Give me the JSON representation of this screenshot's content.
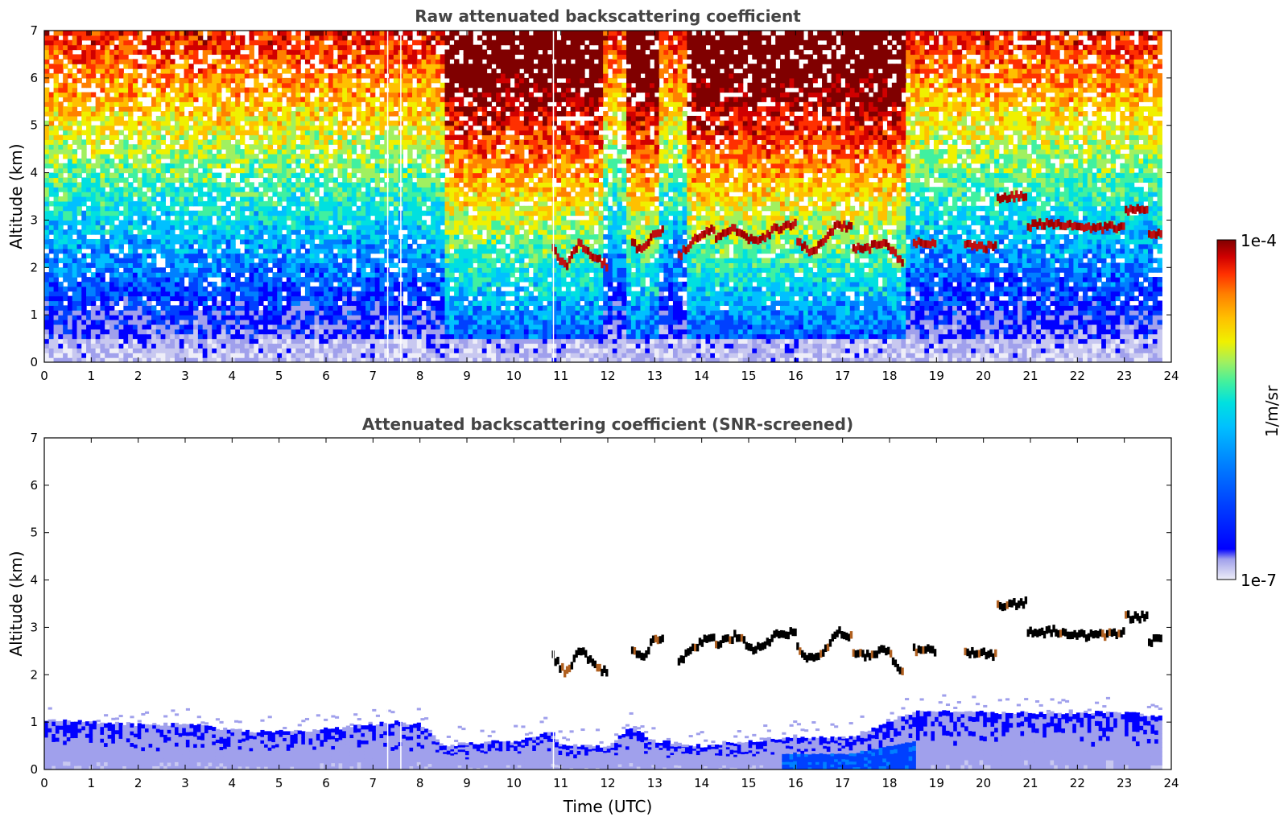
{
  "chart_data": [
    {
      "type": "heatmap",
      "title": "Raw attenuated backscattering coefficient",
      "xlabel": "",
      "ylabel": "Altitude (km)",
      "xlim": [
        0,
        24
      ],
      "ylim": [
        0,
        7
      ],
      "x_ticks": [
        "0",
        "1",
        "2",
        "3",
        "4",
        "5",
        "6",
        "7",
        "8",
        "9",
        "10",
        "11",
        "12",
        "13",
        "14",
        "15",
        "16",
        "17",
        "18",
        "19",
        "20",
        "21",
        "22",
        "23",
        "24"
      ],
      "y_ticks": [
        "0",
        "1",
        "2",
        "3",
        "4",
        "5",
        "6",
        "7"
      ],
      "data_end_time": 23.8,
      "gap_times": [
        7.3,
        7.58,
        10.83
      ],
      "high_signal_periods": [
        [
          8.5,
          10.8
        ],
        [
          10.85,
          11.9
        ],
        [
          12.4,
          13.1
        ],
        [
          13.65,
          18.3
        ]
      ],
      "cloud_layers": [
        {
          "start": 10.8,
          "end": 12.0,
          "altitude": [
            2.4,
            2.0,
            2.5,
            2.2,
            2.0
          ]
        },
        {
          "start": 12.5,
          "end": 13.2,
          "altitude": [
            2.5,
            2.3,
            2.7,
            2.8
          ]
        },
        {
          "start": 13.5,
          "end": 14.3,
          "altitude": [
            2.2,
            2.5,
            2.7,
            2.8
          ]
        },
        {
          "start": 14.3,
          "end": 16.0,
          "altitude": [
            2.6,
            2.8,
            2.5,
            2.8,
            2.9
          ]
        },
        {
          "start": 16.0,
          "end": 17.2,
          "altitude": [
            2.6,
            2.3,
            2.5,
            2.9,
            2.8
          ]
        },
        {
          "start": 17.2,
          "end": 18.3,
          "altitude": [
            2.4,
            2.4,
            2.5,
            2.0
          ]
        },
        {
          "start": 18.5,
          "end": 19.0,
          "altitude": [
            2.5,
            2.5
          ]
        },
        {
          "start": 19.6,
          "end": 20.3,
          "altitude": [
            2.45,
            2.4
          ]
        },
        {
          "start": 20.0,
          "end": 20.9,
          "altitude": [
            3.55,
            3.45,
            3.5
          ]
        },
        {
          "start": 20.8,
          "end": 23.0,
          "altitude": [
            2.85,
            2.9,
            2.8,
            2.85
          ]
        },
        {
          "start": 22.9,
          "end": 23.5,
          "altitude": [
            3.2,
            3.2
          ]
        },
        {
          "start": 23.1,
          "end": 23.8,
          "altitude": [
            2.7,
            2.7
          ]
        }
      ]
    },
    {
      "type": "heatmap",
      "title": "Attenuated backscattering coefficient (SNR-screened)",
      "xlabel": "Time (UTC)",
      "ylabel": "Altitude (km)",
      "xlim": [
        0,
        24
      ],
      "ylim": [
        0,
        7
      ],
      "x_ticks": [
        "0",
        "1",
        "2",
        "3",
        "4",
        "5",
        "6",
        "7",
        "8",
        "9",
        "10",
        "11",
        "12",
        "13",
        "14",
        "15",
        "16",
        "17",
        "18",
        "19",
        "20",
        "21",
        "22",
        "23",
        "24"
      ],
      "y_ticks": [
        "0",
        "1",
        "2",
        "3",
        "4",
        "5",
        "6",
        "7"
      ],
      "boundary_layer_top": {
        "time": [
          0,
          1,
          2,
          3,
          4,
          4.5,
          5,
          6,
          7,
          7.5,
          8,
          8.5,
          9,
          10,
          10.8,
          11,
          12,
          12.5,
          13,
          14,
          15,
          16,
          17,
          17.5,
          18,
          18.5,
          19,
          20,
          21,
          22,
          23,
          23.8
        ],
        "altitude": [
          1.05,
          1.0,
          0.95,
          0.95,
          0.85,
          0.8,
          0.8,
          0.85,
          0.95,
          1.0,
          0.95,
          0.5,
          0.55,
          0.6,
          0.8,
          0.5,
          0.5,
          0.9,
          0.6,
          0.5,
          0.6,
          0.7,
          0.65,
          0.8,
          1.0,
          1.2,
          1.25,
          1.2,
          1.2,
          1.2,
          1.2,
          1.1
        ]
      }
    }
  ],
  "colorbar": {
    "max_label": "1e-4",
    "min_label": "1e-7",
    "unit_label": "1/m/sr",
    "colors": [
      "#eeeef8",
      "#c8c8f0",
      "#a0a0ec",
      "#0000ff",
      "#0040ff",
      "#0080ff",
      "#00c0ff",
      "#00e0e0",
      "#40f0a0",
      "#a0f060",
      "#f0f000",
      "#ffc000",
      "#ff8000",
      "#ff3000",
      "#d00000",
      "#800000"
    ]
  }
}
